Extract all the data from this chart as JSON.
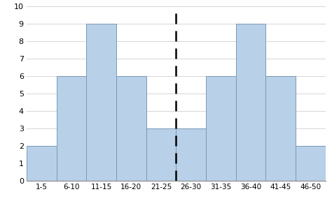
{
  "categories": [
    "1-5",
    "6-10",
    "11-15",
    "16-20",
    "21-25",
    "26-30",
    "31-35",
    "36-40",
    "41-45",
    "46-50"
  ],
  "values": [
    2,
    6,
    9,
    6,
    3,
    3,
    6,
    9,
    6,
    2
  ],
  "bar_color": "#b8d0e8",
  "bar_edge_color": "#7a9ab8",
  "ylim": [
    0,
    10
  ],
  "yticks": [
    0,
    1,
    2,
    3,
    4,
    5,
    6,
    7,
    8,
    9,
    10
  ],
  "dashed_line_x": 4.5,
  "dashed_line_color": "black",
  "background_color": "#ffffff",
  "grid_color": "#d0d0d0",
  "figsize": [
    4.74,
    2.98
  ],
  "dpi": 100
}
